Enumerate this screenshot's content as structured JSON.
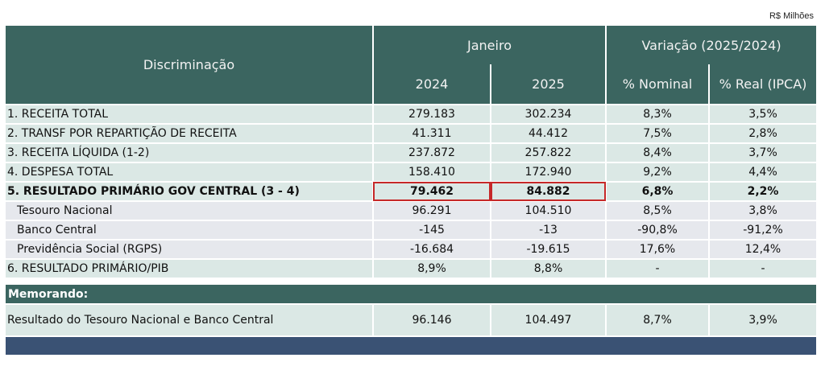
{
  "unit_label": "R$ Milhões",
  "header": {
    "discriminacao": "Discriminação",
    "janeiro": "Janeiro",
    "variacao": "Variação (2025/2024)",
    "col_2024": "2024",
    "col_2025": "2025",
    "col_nominal": "% Nominal",
    "col_real": "% Real (IPCA)"
  },
  "rows": [
    {
      "label": "1. RECEITA TOTAL",
      "v2024": "279.183",
      "v2025": "302.234",
      "nominal": "8,3%",
      "real": "3,5%"
    },
    {
      "label": "2. TRANSF POR REPARTIÇÃO DE RECEITA",
      "v2024": "41.311",
      "v2025": "44.412",
      "nominal": "7,5%",
      "real": "2,8%"
    },
    {
      "label": "3. RECEITA LÍQUIDA (1-2)",
      "v2024": "237.872",
      "v2025": "257.822",
      "nominal": "8,4%",
      "real": "3,7%"
    },
    {
      "label": "4. DESPESA TOTAL",
      "v2024": "158.410",
      "v2025": "172.940",
      "nominal": "9,2%",
      "real": "4,4%"
    },
    {
      "label": "5. RESULTADO PRIMÁRIO GOV CENTRAL (3 - 4)",
      "v2024": "79.462",
      "v2025": "84.882",
      "nominal": "6,8%",
      "real": "2,2%"
    },
    {
      "label": "Tesouro Nacional",
      "v2024": "96.291",
      "v2025": "104.510",
      "nominal": "8,5%",
      "real": "3,8%"
    },
    {
      "label": "Banco Central",
      "v2024": "-145",
      "v2025": "-13",
      "nominal": "-90,8%",
      "real": "-91,2%"
    },
    {
      "label": "Previdência Social (RGPS)",
      "v2024": "-16.684",
      "v2025": "-19.615",
      "nominal": "17,6%",
      "real": "12,4%"
    },
    {
      "label": "6. RESULTADO PRIMÁRIO/PIB",
      "v2024": "8,9%",
      "v2025": "8,8%",
      "nominal": "-",
      "real": "-"
    }
  ],
  "memo": {
    "title": "Memorando:",
    "row": {
      "label": "Resultado do Tesouro Nacional e Banco Central",
      "v2024": "96.146",
      "v2025": "104.497",
      "nominal": "8,7%",
      "real": "3,9%"
    }
  },
  "colors": {
    "header": "#3b6560",
    "row_teal": "#dbe8e5",
    "row_gray": "#e6e8ed",
    "highlight": "#c62828",
    "footer": "#3a5274"
  }
}
